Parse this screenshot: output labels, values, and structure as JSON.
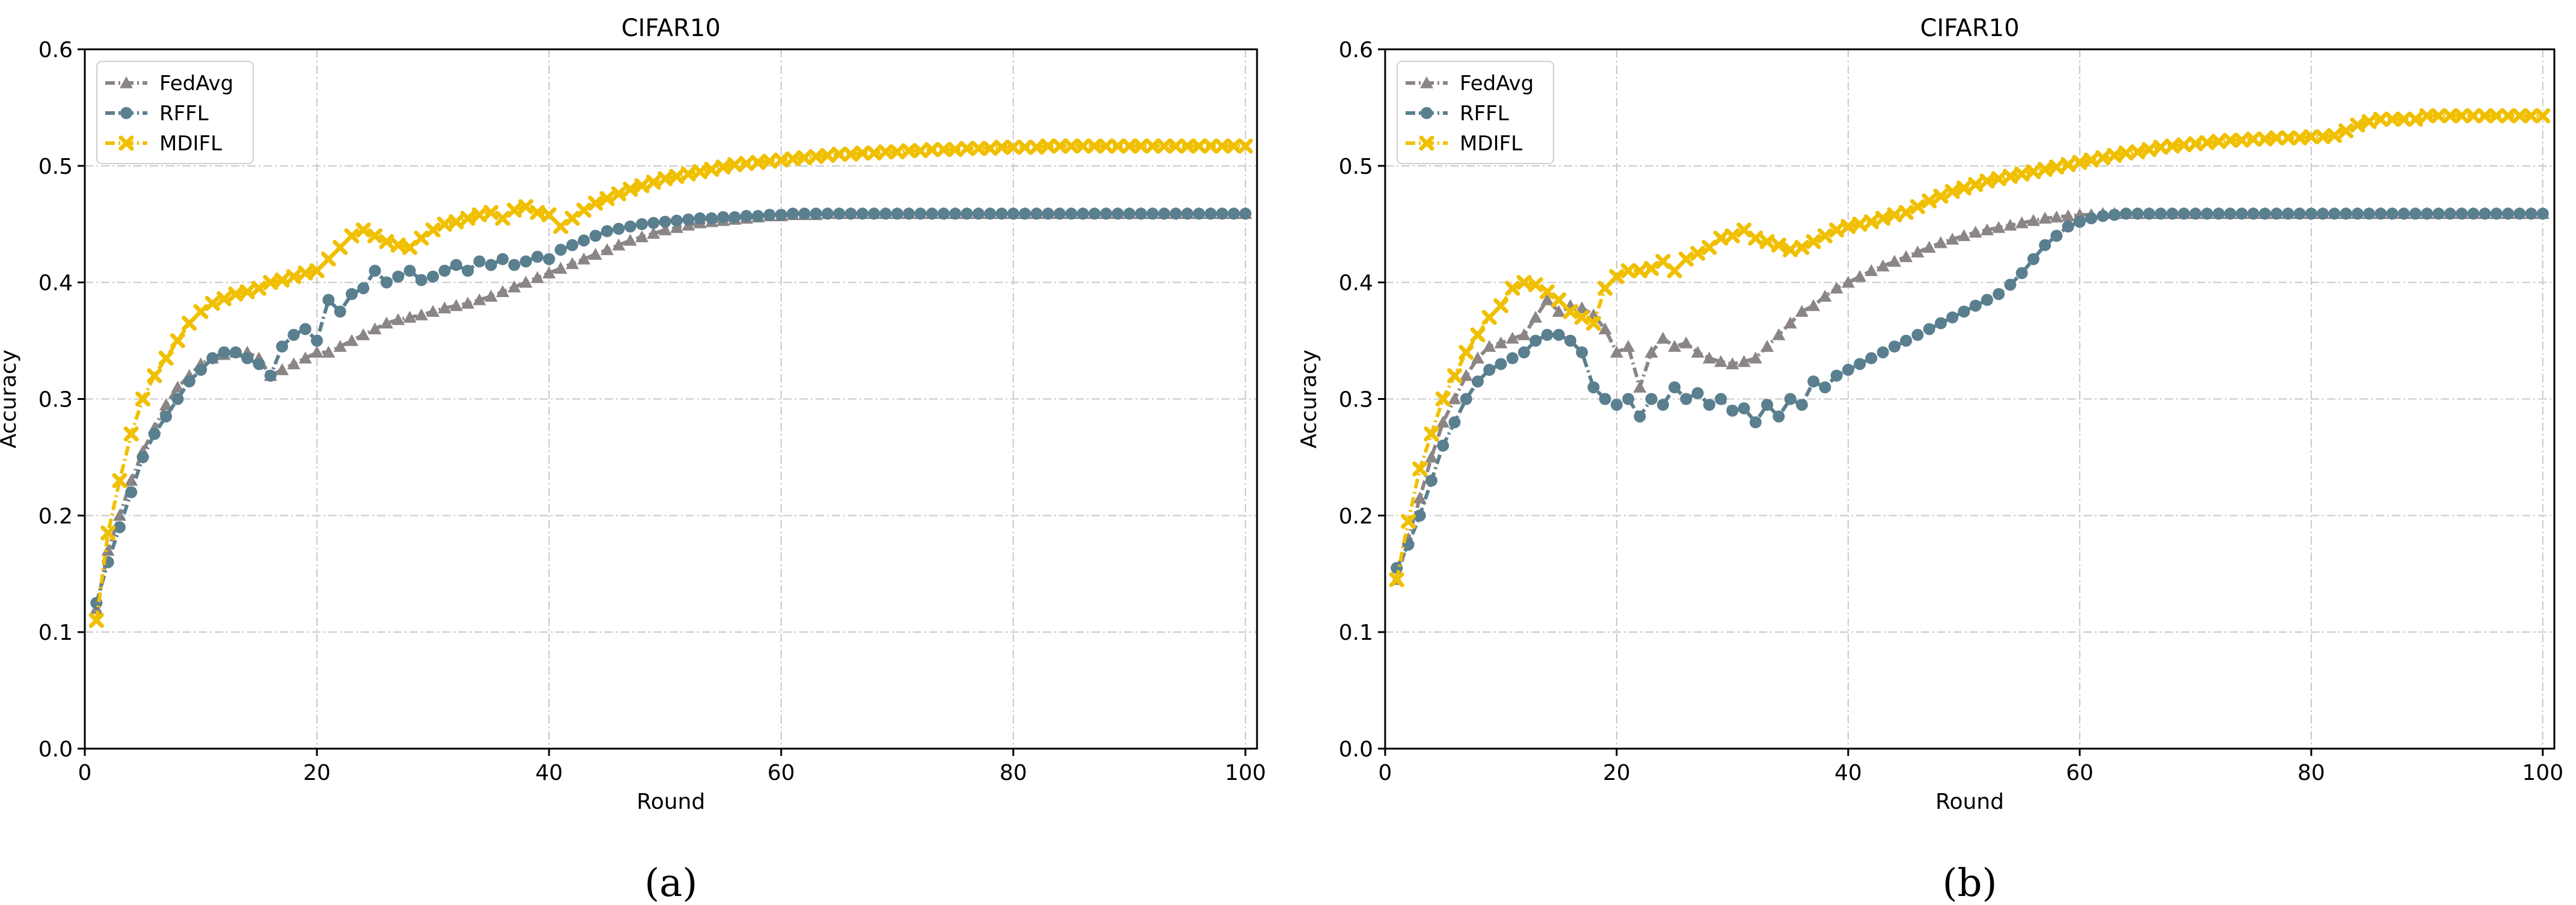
{
  "chart_data": [
    {
      "type": "line",
      "title": "CIFAR10",
      "xlabel": "Round",
      "ylabel": "Accuracy",
      "caption": "(a)",
      "xlim": [
        0,
        101
      ],
      "ylim": [
        0.0,
        0.6
      ],
      "xticks": [
        "0",
        "20",
        "40",
        "60",
        "80",
        "100"
      ],
      "yticks": [
        "0.0",
        "0.1",
        "0.2",
        "0.3",
        "0.4",
        "0.5",
        "0.6"
      ],
      "grid": true,
      "legend_position": "top-left",
      "x": [
        1,
        2,
        3,
        4,
        5,
        6,
        7,
        8,
        9,
        10,
        11,
        12,
        13,
        14,
        15,
        16,
        17,
        18,
        19,
        20,
        21,
        22,
        23,
        24,
        25,
        26,
        27,
        28,
        29,
        30,
        31,
        32,
        33,
        34,
        35,
        36,
        37,
        38,
        39,
        40,
        41,
        42,
        43,
        44,
        45,
        46,
        47,
        48,
        49,
        50,
        51,
        52,
        53,
        54,
        55,
        56,
        57,
        58,
        59,
        60,
        61,
        62,
        63,
        64,
        65,
        66,
        67,
        68,
        69,
        70,
        71,
        72,
        73,
        74,
        75,
        76,
        77,
        78,
        79,
        80,
        81,
        82,
        83,
        84,
        85,
        86,
        87,
        88,
        89,
        90,
        91,
        92,
        93,
        94,
        95,
        96,
        97,
        98,
        99,
        100
      ],
      "series": [
        {
          "name": "FedAvg",
          "color": "#8c8585",
          "marker": "triangle",
          "values": [
            0.12,
            0.17,
            0.2,
            0.23,
            0.255,
            0.275,
            0.295,
            0.31,
            0.32,
            0.33,
            0.335,
            0.338,
            0.34,
            0.34,
            0.335,
            0.32,
            0.325,
            0.33,
            0.335,
            0.34,
            0.34,
            0.345,
            0.35,
            0.355,
            0.36,
            0.365,
            0.368,
            0.37,
            0.372,
            0.375,
            0.378,
            0.38,
            0.382,
            0.385,
            0.388,
            0.392,
            0.396,
            0.4,
            0.404,
            0.408,
            0.412,
            0.416,
            0.42,
            0.424,
            0.428,
            0.432,
            0.436,
            0.439,
            0.442,
            0.445,
            0.447,
            0.449,
            0.451,
            0.452,
            0.453,
            0.454,
            0.455,
            0.456,
            0.457,
            0.457,
            0.458,
            0.458,
            0.458,
            0.459,
            0.459,
            0.459,
            0.459,
            0.459,
            0.459,
            0.459,
            0.459,
            0.459,
            0.459,
            0.459,
            0.459,
            0.459,
            0.459,
            0.459,
            0.459,
            0.459,
            0.459,
            0.459,
            0.459,
            0.459,
            0.459,
            0.459,
            0.459,
            0.459,
            0.459,
            0.459,
            0.459,
            0.459,
            0.459,
            0.459,
            0.459,
            0.459,
            0.459,
            0.459,
            0.459,
            0.459
          ]
        },
        {
          "name": "RFFL",
          "color": "#5a7f8f",
          "marker": "circle",
          "values": [
            0.125,
            0.16,
            0.19,
            0.22,
            0.25,
            0.27,
            0.285,
            0.3,
            0.315,
            0.325,
            0.335,
            0.34,
            0.34,
            0.335,
            0.33,
            0.32,
            0.345,
            0.355,
            0.36,
            0.35,
            0.385,
            0.375,
            0.39,
            0.395,
            0.41,
            0.4,
            0.405,
            0.41,
            0.402,
            0.405,
            0.41,
            0.415,
            0.41,
            0.418,
            0.415,
            0.42,
            0.415,
            0.418,
            0.422,
            0.42,
            0.428,
            0.432,
            0.436,
            0.44,
            0.444,
            0.446,
            0.448,
            0.45,
            0.451,
            0.452,
            0.453,
            0.454,
            0.455,
            0.455,
            0.456,
            0.456,
            0.457,
            0.457,
            0.458,
            0.458,
            0.459,
            0.459,
            0.459,
            0.459,
            0.459,
            0.459,
            0.459,
            0.459,
            0.459,
            0.459,
            0.459,
            0.459,
            0.459,
            0.459,
            0.459,
            0.459,
            0.459,
            0.459,
            0.459,
            0.459,
            0.459,
            0.459,
            0.459,
            0.459,
            0.459,
            0.459,
            0.459,
            0.459,
            0.459,
            0.459,
            0.459,
            0.459,
            0.459,
            0.459,
            0.459,
            0.459,
            0.459,
            0.459,
            0.459,
            0.459
          ]
        },
        {
          "name": "MDIFL",
          "color": "#f0c000",
          "marker": "x",
          "values": [
            0.11,
            0.185,
            0.23,
            0.27,
            0.3,
            0.32,
            0.335,
            0.35,
            0.365,
            0.375,
            0.382,
            0.386,
            0.39,
            0.392,
            0.395,
            0.4,
            0.402,
            0.405,
            0.408,
            0.41,
            0.42,
            0.43,
            0.44,
            0.445,
            0.44,
            0.435,
            0.432,
            0.43,
            0.438,
            0.445,
            0.45,
            0.452,
            0.455,
            0.458,
            0.46,
            0.455,
            0.462,
            0.465,
            0.46,
            0.458,
            0.448,
            0.455,
            0.462,
            0.468,
            0.472,
            0.476,
            0.48,
            0.483,
            0.486,
            0.489,
            0.491,
            0.493,
            0.495,
            0.497,
            0.499,
            0.501,
            0.502,
            0.503,
            0.504,
            0.505,
            0.506,
            0.507,
            0.508,
            0.509,
            0.51,
            0.51,
            0.511,
            0.511,
            0.512,
            0.512,
            0.513,
            0.513,
            0.514,
            0.514,
            0.514,
            0.515,
            0.515,
            0.515,
            0.516,
            0.516,
            0.516,
            0.516,
            0.517,
            0.517,
            0.517,
            0.517,
            0.517,
            0.517,
            0.517,
            0.517,
            0.517,
            0.517,
            0.517,
            0.517,
            0.517,
            0.517,
            0.517,
            0.517,
            0.517,
            0.517
          ]
        }
      ]
    },
    {
      "type": "line",
      "title": "CIFAR10",
      "xlabel": "Round",
      "ylabel": "Accuracy",
      "caption": "(b)",
      "xlim": [
        0,
        101
      ],
      "ylim": [
        0.0,
        0.6
      ],
      "xticks": [
        "0",
        "20",
        "40",
        "60",
        "80",
        "100"
      ],
      "yticks": [
        "0.0",
        "0.1",
        "0.2",
        "0.3",
        "0.4",
        "0.5",
        "0.6"
      ],
      "grid": true,
      "legend_position": "top-left",
      "x": [
        1,
        2,
        3,
        4,
        5,
        6,
        7,
        8,
        9,
        10,
        11,
        12,
        13,
        14,
        15,
        16,
        17,
        18,
        19,
        20,
        21,
        22,
        23,
        24,
        25,
        26,
        27,
        28,
        29,
        30,
        31,
        32,
        33,
        34,
        35,
        36,
        37,
        38,
        39,
        40,
        41,
        42,
        43,
        44,
        45,
        46,
        47,
        48,
        49,
        50,
        51,
        52,
        53,
        54,
        55,
        56,
        57,
        58,
        59,
        60,
        61,
        62,
        63,
        64,
        65,
        66,
        67,
        68,
        69,
        70,
        71,
        72,
        73,
        74,
        75,
        76,
        77,
        78,
        79,
        80,
        81,
        82,
        83,
        84,
        85,
        86,
        87,
        88,
        89,
        90,
        91,
        92,
        93,
        94,
        95,
        96,
        97,
        98,
        99,
        100
      ],
      "series": [
        {
          "name": "FedAvg",
          "color": "#8c8585",
          "marker": "triangle",
          "values": [
            0.145,
            0.18,
            0.215,
            0.25,
            0.28,
            0.3,
            0.32,
            0.335,
            0.345,
            0.348,
            0.352,
            0.355,
            0.37,
            0.385,
            0.375,
            0.38,
            0.378,
            0.372,
            0.36,
            0.34,
            0.345,
            0.31,
            0.34,
            0.352,
            0.345,
            0.348,
            0.34,
            0.335,
            0.332,
            0.33,
            0.332,
            0.335,
            0.345,
            0.355,
            0.365,
            0.375,
            0.38,
            0.388,
            0.395,
            0.4,
            0.405,
            0.41,
            0.414,
            0.418,
            0.422,
            0.426,
            0.43,
            0.434,
            0.437,
            0.44,
            0.443,
            0.445,
            0.447,
            0.449,
            0.451,
            0.453,
            0.455,
            0.456,
            0.457,
            0.458,
            0.458,
            0.459,
            0.459,
            0.459,
            0.459,
            0.459,
            0.459,
            0.459,
            0.459,
            0.459,
            0.459,
            0.459,
            0.459,
            0.459,
            0.459,
            0.459,
            0.459,
            0.459,
            0.459,
            0.459,
            0.459,
            0.459,
            0.459,
            0.459,
            0.459,
            0.459,
            0.459,
            0.459,
            0.459,
            0.459,
            0.459,
            0.459,
            0.459,
            0.459,
            0.459,
            0.459,
            0.459,
            0.459,
            0.459,
            0.459
          ]
        },
        {
          "name": "RFFL",
          "color": "#5a7f8f",
          "marker": "circle",
          "values": [
            0.155,
            0.175,
            0.2,
            0.23,
            0.26,
            0.28,
            0.3,
            0.315,
            0.325,
            0.33,
            0.335,
            0.34,
            0.35,
            0.355,
            0.355,
            0.35,
            0.34,
            0.31,
            0.3,
            0.295,
            0.3,
            0.285,
            0.3,
            0.295,
            0.31,
            0.3,
            0.305,
            0.295,
            0.3,
            0.29,
            0.292,
            0.28,
            0.295,
            0.285,
            0.3,
            0.295,
            0.315,
            0.31,
            0.32,
            0.325,
            0.33,
            0.335,
            0.34,
            0.345,
            0.35,
            0.355,
            0.36,
            0.365,
            0.37,
            0.375,
            0.38,
            0.385,
            0.39,
            0.398,
            0.408,
            0.42,
            0.432,
            0.44,
            0.448,
            0.452,
            0.455,
            0.457,
            0.458,
            0.459,
            0.459,
            0.459,
            0.459,
            0.459,
            0.459,
            0.459,
            0.459,
            0.459,
            0.459,
            0.459,
            0.459,
            0.459,
            0.459,
            0.459,
            0.459,
            0.459,
            0.459,
            0.459,
            0.459,
            0.459,
            0.459,
            0.459,
            0.459,
            0.459,
            0.459,
            0.459,
            0.459,
            0.459,
            0.459,
            0.459,
            0.459,
            0.459,
            0.459,
            0.459,
            0.459,
            0.459
          ]
        },
        {
          "name": "MDIFL",
          "color": "#f0c000",
          "marker": "x",
          "values": [
            0.145,
            0.195,
            0.24,
            0.27,
            0.3,
            0.32,
            0.34,
            0.355,
            0.37,
            0.38,
            0.395,
            0.4,
            0.398,
            0.392,
            0.385,
            0.375,
            0.37,
            0.365,
            0.395,
            0.405,
            0.41,
            0.41,
            0.412,
            0.418,
            0.41,
            0.42,
            0.425,
            0.43,
            0.438,
            0.44,
            0.445,
            0.438,
            0.435,
            0.432,
            0.428,
            0.43,
            0.435,
            0.44,
            0.445,
            0.448,
            0.45,
            0.452,
            0.455,
            0.458,
            0.46,
            0.465,
            0.47,
            0.474,
            0.478,
            0.481,
            0.484,
            0.487,
            0.489,
            0.491,
            0.493,
            0.495,
            0.497,
            0.499,
            0.501,
            0.503,
            0.505,
            0.507,
            0.509,
            0.511,
            0.512,
            0.514,
            0.516,
            0.517,
            0.518,
            0.519,
            0.52,
            0.521,
            0.522,
            0.522,
            0.523,
            0.523,
            0.524,
            0.524,
            0.524,
            0.525,
            0.525,
            0.526,
            0.53,
            0.535,
            0.538,
            0.54,
            0.54,
            0.54,
            0.54,
            0.543,
            0.543,
            0.543,
            0.543,
            0.543,
            0.543,
            0.543,
            0.543,
            0.543,
            0.543,
            0.543
          ]
        }
      ]
    }
  ]
}
